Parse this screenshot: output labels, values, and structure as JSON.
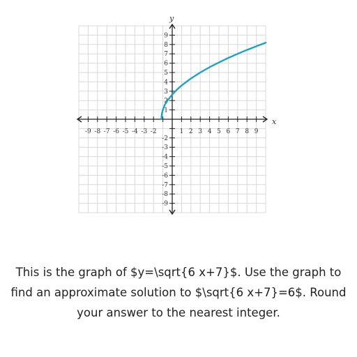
{
  "chart_data": {
    "type": "line",
    "xlabel": "x",
    "ylabel": "y",
    "xlim": [
      -10,
      10
    ],
    "ylim": [
      -10,
      10
    ],
    "grid": true,
    "x_ticks": [
      "-9",
      "-8",
      "-7",
      "-6",
      "-5",
      "-4",
      "-3",
      "-2",
      "1",
      "2",
      "3",
      "4",
      "5",
      "6",
      "7",
      "8",
      "9"
    ],
    "y_ticks": [
      "9",
      "8",
      "7",
      "6",
      "5",
      "4",
      "3",
      "2",
      "1",
      "-2",
      "-3",
      "-4",
      "-5",
      "-6",
      "-7",
      "-8",
      "-9"
    ],
    "series": [
      {
        "function": "sqrt(6x+7)",
        "color": "#1fa1c3",
        "x": [
          -1.1667,
          -1.1,
          -1.0,
          -0.8,
          -0.5,
          0,
          0.5,
          1,
          2,
          3,
          4,
          5,
          6,
          7,
          8,
          9,
          10
        ],
        "y": [
          0,
          0.63,
          1.0,
          1.55,
          2.0,
          2.65,
          3.16,
          3.61,
          4.36,
          5.0,
          5.57,
          6.08,
          6.56,
          7.0,
          7.42,
          7.81,
          8.19
        ]
      }
    ]
  },
  "question": {
    "line1": "This is the graph of $y=\\sqrt{6 x+7}$. Use the graph to",
    "line2": "find an approximate solution to $\\sqrt{6 x+7}=6$. Round",
    "line3": "your answer to the nearest integer."
  }
}
